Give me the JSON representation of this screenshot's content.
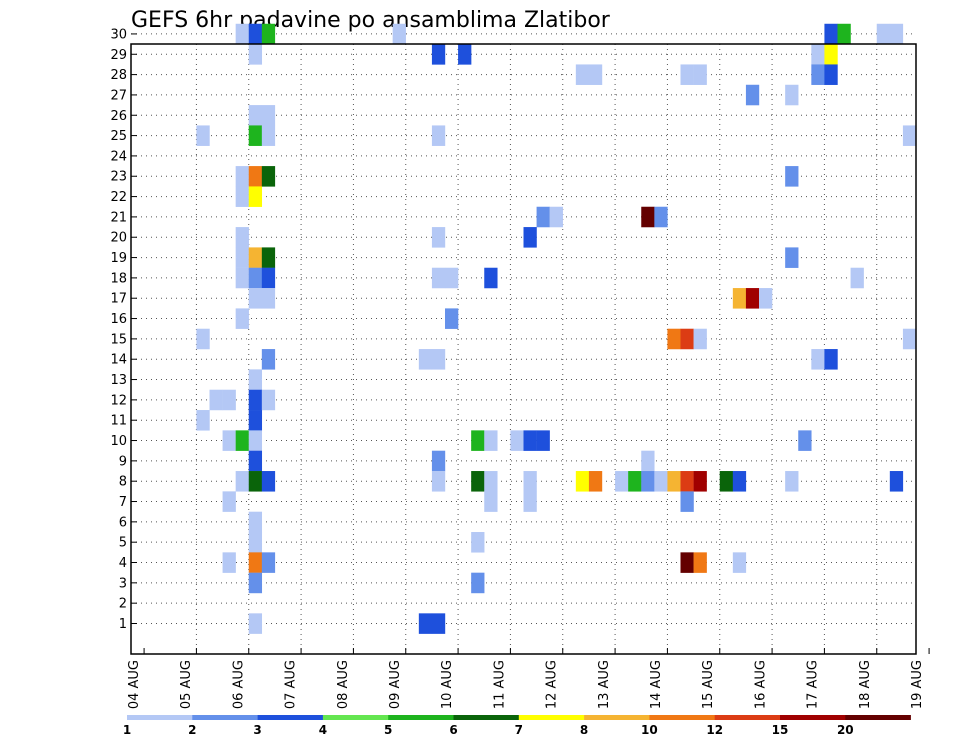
{
  "chart_data": {
    "type": "heatmap",
    "title": "GEFS 6hr padavine po ansamblima Zlatibor",
    "xlabel": "",
    "ylabel": "",
    "x_ticks": [
      "04 AUG",
      "05 AUG",
      "06 AUG",
      "07 AUG",
      "08 AUG",
      "09 AUG",
      "10 AUG",
      "11 AUG",
      "12 AUG",
      "13 AUG",
      "14 AUG",
      "15 AUG",
      "16 AUG",
      "17 AUG",
      "18 AUG",
      "19 AUG"
    ],
    "y_ticks": [
      "1",
      "2",
      "3",
      "4",
      "5",
      "6",
      "7",
      "8",
      "9",
      "10",
      "11",
      "12",
      "13",
      "14",
      "15",
      "16",
      "17",
      "18",
      "19",
      "20",
      "21",
      "22",
      "23",
      "24",
      "25",
      "26",
      "27",
      "28",
      "29",
      "30"
    ],
    "time_step_hours": 6,
    "ensemble_members": [
      0,
      30
    ],
    "grid": true,
    "colorbar": {
      "placement": "bottom",
      "levels": [
        "1",
        "2",
        "3",
        "4",
        "5",
        "6",
        "7",
        "8",
        "10",
        "12",
        "15",
        "20"
      ],
      "colors": [
        "#b4c8f5",
        "#6490ea",
        "#1e50dc",
        "#64e650",
        "#1eb41e",
        "#0a640a",
        "#ffff00",
        "#f5b432",
        "#f07814",
        "#dc3c14",
        "#a00000",
        "#640000"
      ]
    },
    "cells": [
      {
        "day": "06",
        "step": 0,
        "member": 30,
        "level": 1
      },
      {
        "day": "06",
        "step": 1,
        "member": 30,
        "level": 3
      },
      {
        "day": "06",
        "step": 2,
        "member": 30,
        "level": 5
      },
      {
        "day": "09",
        "step": 0,
        "member": 30,
        "level": 1
      },
      {
        "day": "17",
        "step": 1,
        "member": 30,
        "level": 3
      },
      {
        "day": "17",
        "step": 2,
        "member": 30,
        "level": 5
      },
      {
        "day": "18",
        "step": 1,
        "member": 30,
        "level": 1
      },
      {
        "day": "18",
        "step": 2,
        "member": 30,
        "level": 1
      },
      {
        "day": "06",
        "step": 1,
        "member": 29,
        "level": 1
      },
      {
        "day": "09",
        "step": 3,
        "member": 29,
        "level": 3
      },
      {
        "day": "10",
        "step": 1,
        "member": 29,
        "level": 3
      },
      {
        "day": "17",
        "step": 0,
        "member": 29,
        "level": 1
      },
      {
        "day": "17",
        "step": 1,
        "member": 29,
        "level": 7
      },
      {
        "day": "12",
        "step": 2,
        "member": 28,
        "level": 1
      },
      {
        "day": "12",
        "step": 3,
        "member": 28,
        "level": 1
      },
      {
        "day": "14",
        "step": 2,
        "member": 28,
        "level": 1
      },
      {
        "day": "14",
        "step": 3,
        "member": 28,
        "level": 1
      },
      {
        "day": "17",
        "step": 0,
        "member": 28,
        "level": 2
      },
      {
        "day": "17",
        "step": 1,
        "member": 28,
        "level": 3
      },
      {
        "day": "15",
        "step": 3,
        "member": 27,
        "level": 2
      },
      {
        "day": "16",
        "step": 2,
        "member": 27,
        "level": 1
      },
      {
        "day": "06",
        "step": 1,
        "member": 26,
        "level": 1
      },
      {
        "day": "06",
        "step": 2,
        "member": 26,
        "level": 1
      },
      {
        "day": "05",
        "step": 1,
        "member": 25,
        "level": 1
      },
      {
        "day": "06",
        "step": 1,
        "member": 25,
        "level": 5
      },
      {
        "day": "06",
        "step": 2,
        "member": 25,
        "level": 1
      },
      {
        "day": "09",
        "step": 3,
        "member": 25,
        "level": 1
      },
      {
        "day": "18",
        "step": 3,
        "member": 25,
        "level": 1
      },
      {
        "day": "06",
        "step": 0,
        "member": 23,
        "level": 1
      },
      {
        "day": "06",
        "step": 1,
        "member": 23,
        "level": 9
      },
      {
        "day": "06",
        "step": 2,
        "member": 23,
        "level": 6
      },
      {
        "day": "16",
        "step": 2,
        "member": 23,
        "level": 2
      },
      {
        "day": "06",
        "step": 0,
        "member": 22,
        "level": 1
      },
      {
        "day": "06",
        "step": 1,
        "member": 22,
        "level": 7
      },
      {
        "day": "11",
        "step": 3,
        "member": 21,
        "level": 2
      },
      {
        "day": "12",
        "step": 0,
        "member": 21,
        "level": 1
      },
      {
        "day": "13",
        "step": 3,
        "member": 21,
        "level": 12
      },
      {
        "day": "14",
        "step": 0,
        "member": 21,
        "level": 2
      },
      {
        "day": "06",
        "step": 0,
        "member": 20,
        "level": 1
      },
      {
        "day": "09",
        "step": 3,
        "member": 20,
        "level": 1
      },
      {
        "day": "11",
        "step": 2,
        "member": 20,
        "level": 3
      },
      {
        "day": "06",
        "step": 0,
        "member": 19,
        "level": 1
      },
      {
        "day": "06",
        "step": 1,
        "member": 19,
        "level": 8
      },
      {
        "day": "06",
        "step": 2,
        "member": 19,
        "level": 6
      },
      {
        "day": "16",
        "step": 2,
        "member": 19,
        "level": 2
      },
      {
        "day": "06",
        "step": 0,
        "member": 18,
        "level": 1
      },
      {
        "day": "06",
        "step": 1,
        "member": 18,
        "level": 2
      },
      {
        "day": "06",
        "step": 2,
        "member": 18,
        "level": 3
      },
      {
        "day": "09",
        "step": 3,
        "member": 18,
        "level": 1
      },
      {
        "day": "10",
        "step": 0,
        "member": 18,
        "level": 1
      },
      {
        "day": "10",
        "step": 3,
        "member": 18,
        "level": 3
      },
      {
        "day": "17",
        "step": 3,
        "member": 18,
        "level": 1
      },
      {
        "day": "06",
        "step": 1,
        "member": 17,
        "level": 1
      },
      {
        "day": "06",
        "step": 2,
        "member": 17,
        "level": 1
      },
      {
        "day": "15",
        "step": 2,
        "member": 17,
        "level": 8
      },
      {
        "day": "15",
        "step": 3,
        "member": 17,
        "level": 11
      },
      {
        "day": "16",
        "step": 0,
        "member": 17,
        "level": 1
      },
      {
        "day": "06",
        "step": 0,
        "member": 16,
        "level": 1
      },
      {
        "day": "10",
        "step": 0,
        "member": 16,
        "level": 2
      },
      {
        "day": "05",
        "step": 1,
        "member": 15,
        "level": 1
      },
      {
        "day": "14",
        "step": 1,
        "member": 15,
        "level": 9
      },
      {
        "day": "14",
        "step": 2,
        "member": 15,
        "level": 10
      },
      {
        "day": "14",
        "step": 3,
        "member": 15,
        "level": 1
      },
      {
        "day": "18",
        "step": 3,
        "member": 15,
        "level": 1
      },
      {
        "day": "06",
        "step": 2,
        "member": 14,
        "level": 2
      },
      {
        "day": "09",
        "step": 2,
        "member": 14,
        "level": 1
      },
      {
        "day": "09",
        "step": 3,
        "member": 14,
        "level": 1
      },
      {
        "day": "17",
        "step": 0,
        "member": 14,
        "level": 1
      },
      {
        "day": "17",
        "step": 1,
        "member": 14,
        "level": 3
      },
      {
        "day": "06",
        "step": 1,
        "member": 13,
        "level": 1
      },
      {
        "day": "05",
        "step": 2,
        "member": 12,
        "level": 1
      },
      {
        "day": "05",
        "step": 3,
        "member": 12,
        "level": 1
      },
      {
        "day": "06",
        "step": 1,
        "member": 12,
        "level": 3
      },
      {
        "day": "06",
        "step": 2,
        "member": 12,
        "level": 1
      },
      {
        "day": "05",
        "step": 1,
        "member": 11,
        "level": 1
      },
      {
        "day": "06",
        "step": 1,
        "member": 11,
        "level": 3
      },
      {
        "day": "05",
        "step": 3,
        "member": 10,
        "level": 1
      },
      {
        "day": "06",
        "step": 0,
        "member": 10,
        "level": 5
      },
      {
        "day": "06",
        "step": 1,
        "member": 10,
        "level": 1
      },
      {
        "day": "10",
        "step": 2,
        "member": 10,
        "level": 5
      },
      {
        "day": "10",
        "step": 3,
        "member": 10,
        "level": 1
      },
      {
        "day": "11",
        "step": 1,
        "member": 10,
        "level": 1
      },
      {
        "day": "11",
        "step": 2,
        "member": 10,
        "level": 3
      },
      {
        "day": "11",
        "step": 3,
        "member": 10,
        "level": 3
      },
      {
        "day": "16",
        "step": 3,
        "member": 10,
        "level": 2
      },
      {
        "day": "06",
        "step": 1,
        "member": 9,
        "level": 3
      },
      {
        "day": "09",
        "step": 3,
        "member": 9,
        "level": 2
      },
      {
        "day": "13",
        "step": 3,
        "member": 9,
        "level": 1
      },
      {
        "day": "06",
        "step": 0,
        "member": 8,
        "level": 1
      },
      {
        "day": "06",
        "step": 1,
        "member": 8,
        "level": 6
      },
      {
        "day": "06",
        "step": 2,
        "member": 8,
        "level": 3
      },
      {
        "day": "09",
        "step": 3,
        "member": 8,
        "level": 1
      },
      {
        "day": "10",
        "step": 2,
        "member": 8,
        "level": 6
      },
      {
        "day": "10",
        "step": 3,
        "member": 8,
        "level": 1
      },
      {
        "day": "11",
        "step": 2,
        "member": 8,
        "level": 1
      },
      {
        "day": "12",
        "step": 2,
        "member": 8,
        "level": 7
      },
      {
        "day": "12",
        "step": 3,
        "member": 8,
        "level": 9
      },
      {
        "day": "13",
        "step": 1,
        "member": 8,
        "level": 1
      },
      {
        "day": "13",
        "step": 2,
        "member": 8,
        "level": 5
      },
      {
        "day": "13",
        "step": 3,
        "member": 8,
        "level": 2
      },
      {
        "day": "14",
        "step": 0,
        "member": 8,
        "level": 1
      },
      {
        "day": "14",
        "step": 1,
        "member": 8,
        "level": 8
      },
      {
        "day": "14",
        "step": 2,
        "member": 8,
        "level": 10
      },
      {
        "day": "14",
        "step": 3,
        "member": 8,
        "level": 11
      },
      {
        "day": "15",
        "step": 1,
        "member": 8,
        "level": 6
      },
      {
        "day": "15",
        "step": 2,
        "member": 8,
        "level": 3
      },
      {
        "day": "16",
        "step": 2,
        "member": 8,
        "level": 1
      },
      {
        "day": "18",
        "step": 2,
        "member": 8,
        "level": 3
      },
      {
        "day": "05",
        "step": 3,
        "member": 7,
        "level": 1
      },
      {
        "day": "10",
        "step": 3,
        "member": 7,
        "level": 1
      },
      {
        "day": "11",
        "step": 2,
        "member": 7,
        "level": 1
      },
      {
        "day": "14",
        "step": 2,
        "member": 7,
        "level": 2
      },
      {
        "day": "06",
        "step": 1,
        "member": 6,
        "level": 1
      },
      {
        "day": "06",
        "step": 1,
        "member": 5,
        "level": 1
      },
      {
        "day": "10",
        "step": 2,
        "member": 5,
        "level": 1
      },
      {
        "day": "05",
        "step": 3,
        "member": 4,
        "level": 1
      },
      {
        "day": "06",
        "step": 1,
        "member": 4,
        "level": 9
      },
      {
        "day": "06",
        "step": 2,
        "member": 4,
        "level": 2
      },
      {
        "day": "14",
        "step": 2,
        "member": 4,
        "level": 12
      },
      {
        "day": "14",
        "step": 3,
        "member": 4,
        "level": 9
      },
      {
        "day": "15",
        "step": 2,
        "member": 4,
        "level": 1
      },
      {
        "day": "06",
        "step": 1,
        "member": 3,
        "level": 2
      },
      {
        "day": "10",
        "step": 2,
        "member": 3,
        "level": 2
      },
      {
        "day": "06",
        "step": 1,
        "member": 1,
        "level": 1
      },
      {
        "day": "09",
        "step": 2,
        "member": 1,
        "level": 3
      },
      {
        "day": "09",
        "step": 3,
        "member": 1,
        "level": 3
      }
    ]
  }
}
